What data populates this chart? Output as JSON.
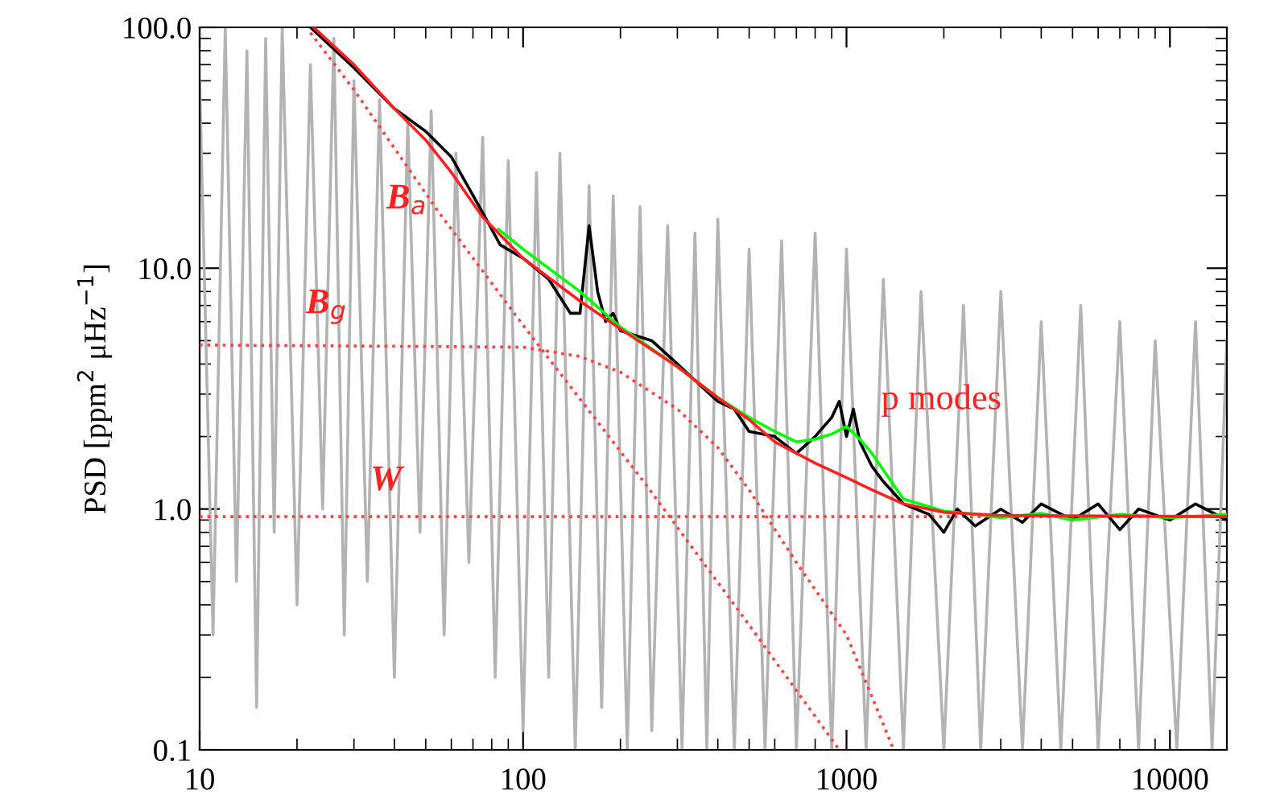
{
  "chart_data": {
    "type": "line",
    "ylabel": "PSD [ppm$^{2}$ μHz$^{−1}$]",
    "log": "xy",
    "grid": false,
    "xlim": [
      10,
      15000
    ],
    "ylim": [
      0.1,
      100
    ],
    "xticks": [
      10,
      100,
      1000,
      10000
    ],
    "yticks": [
      {
        "value": 0.1,
        "label": "0.1"
      },
      {
        "value": 1,
        "label": "1.0"
      },
      {
        "value": 10,
        "label": "10.0"
      },
      {
        "value": 100,
        "label": "100.0"
      }
    ],
    "series": [
      {
        "color": "#b3b3b3",
        "line_style": "solid",
        "x": [
          10,
          11,
          12,
          13,
          14,
          15,
          16,
          17,
          18,
          20,
          22,
          24,
          26,
          28,
          30,
          33,
          36,
          40,
          44,
          48,
          52,
          57,
          62,
          68,
          75,
          82,
          90,
          100,
          110,
          120,
          130,
          145,
          160,
          175,
          190,
          210,
          230,
          250,
          280,
          310,
          340,
          370,
          400,
          450,
          500,
          560,
          630,
          700,
          800,
          900,
          1000,
          1150,
          1300,
          1500,
          1700,
          2000,
          2300,
          2600,
          3000,
          3500,
          4000,
          4600,
          5300,
          6000,
          7000,
          8000,
          9000,
          10500,
          12000,
          13500,
          15000
        ],
        "values": [
          60,
          0.3,
          100,
          0.5,
          80,
          0.15,
          90,
          0.8,
          100,
          0.4,
          70,
          1.0,
          90,
          0.3,
          60,
          0.5,
          50,
          0.2,
          40,
          0.8,
          45,
          0.3,
          30,
          0.6,
          35,
          0.2,
          28,
          0.12,
          25,
          0.2,
          30,
          0.1,
          22,
          0.15,
          20,
          0.1,
          18,
          0.12,
          15,
          0.1,
          14,
          0.1,
          16,
          0.1,
          12,
          0.1,
          13,
          0.1,
          14,
          0.1,
          12,
          0.1,
          9,
          0.1,
          8,
          0.1,
          7,
          0.1,
          8,
          0.1,
          6,
          0.1,
          7,
          0.1,
          6,
          0.1,
          5,
          0.1,
          6,
          0.1,
          5
        ]
      },
      {
        "color": "#ff4040",
        "line_style": "dotted",
        "x": [
          22,
          30,
          55,
          100,
          236,
          500,
          950
        ],
        "values": [
          95,
          55,
          17,
          5.8,
          1.3,
          0.33,
          0.1
        ]
      },
      {
        "color": "#ff4040",
        "line_style": "dotted",
        "x": [
          10,
          100,
          150,
          200,
          300,
          400,
          500,
          700,
          1000,
          1400
        ],
        "values": [
          4.8,
          4.7,
          4.3,
          3.7,
          2.6,
          1.8,
          1.2,
          0.6,
          0.3,
          0.1
        ]
      },
      {
        "color": "#ff4040",
        "line_style": "dotted",
        "x": [
          10,
          15000
        ],
        "values": [
          0.93,
          0.93
        ]
      },
      {
        "color": "#000000",
        "line_style": "solid",
        "x": [
          22,
          30,
          40,
          50,
          60,
          75,
          85,
          100,
          120,
          140,
          150,
          160,
          170,
          180,
          190,
          200,
          250,
          300,
          350,
          400,
          450,
          500,
          600,
          700,
          800,
          900,
          950,
          1000,
          1050,
          1100,
          1200,
          1300,
          1500,
          1800,
          2000,
          2200,
          2500,
          3000,
          3500,
          4000,
          5000,
          6000,
          7000,
          8000,
          10000,
          12000,
          15000
        ],
        "values": [
          100,
          68,
          46,
          37,
          29,
          17,
          12.5,
          11,
          9,
          6.5,
          6.5,
          15,
          8,
          6,
          6.5,
          5.5,
          5,
          4,
          3.3,
          2.8,
          2.6,
          2.1,
          2.0,
          1.7,
          2.0,
          2.4,
          2.8,
          2.0,
          2.6,
          1.9,
          1.5,
          1.3,
          1.05,
          0.95,
          0.8,
          1.0,
          0.85,
          1.0,
          0.88,
          1.05,
          0.9,
          1.05,
          0.82,
          1.0,
          0.9,
          1.05,
          0.9
        ]
      },
      {
        "color": "#00ff00",
        "line_style": "solid",
        "x": [
          84,
          100,
          150,
          200,
          300,
          400,
          500,
          600,
          700,
          800,
          900,
          1000,
          1100,
          1200,
          1300,
          1500,
          2000,
          2500,
          3000,
          4000,
          5000,
          7000,
          10000,
          15000
        ],
        "values": [
          14.5,
          12,
          8,
          5.7,
          3.9,
          2.9,
          2.4,
          2.1,
          1.9,
          1.95,
          2.05,
          2.2,
          1.95,
          1.7,
          1.45,
          1.1,
          0.98,
          0.95,
          0.92,
          0.96,
          0.9,
          0.95,
          0.92,
          0.95
        ]
      },
      {
        "color": "#ff2020",
        "line_style": "solid",
        "x": [
          22.5,
          30,
          40,
          50,
          60,
          75,
          100,
          150,
          200,
          300,
          400,
          500,
          600,
          800,
          1000,
          1200,
          1500,
          2000,
          3000,
          15000
        ],
        "values": [
          100,
          70,
          46,
          34,
          25,
          16.3,
          11,
          7.3,
          5.6,
          3.9,
          2.9,
          2.35,
          1.9,
          1.55,
          1.35,
          1.2,
          1.05,
          0.97,
          0.94,
          0.93
        ]
      }
    ],
    "annotations": [
      {
        "text": "B$_{a}$",
        "x": 37.8,
        "y": 17.7
      },
      {
        "text": "B$_{g}$",
        "x": 21.3,
        "y": 6.5
      },
      {
        "text": "W",
        "x": 33.7,
        "y": 1.2
      },
      {
        "text": "p modes",
        "x": 1280,
        "y": 2.6
      }
    ]
  }
}
